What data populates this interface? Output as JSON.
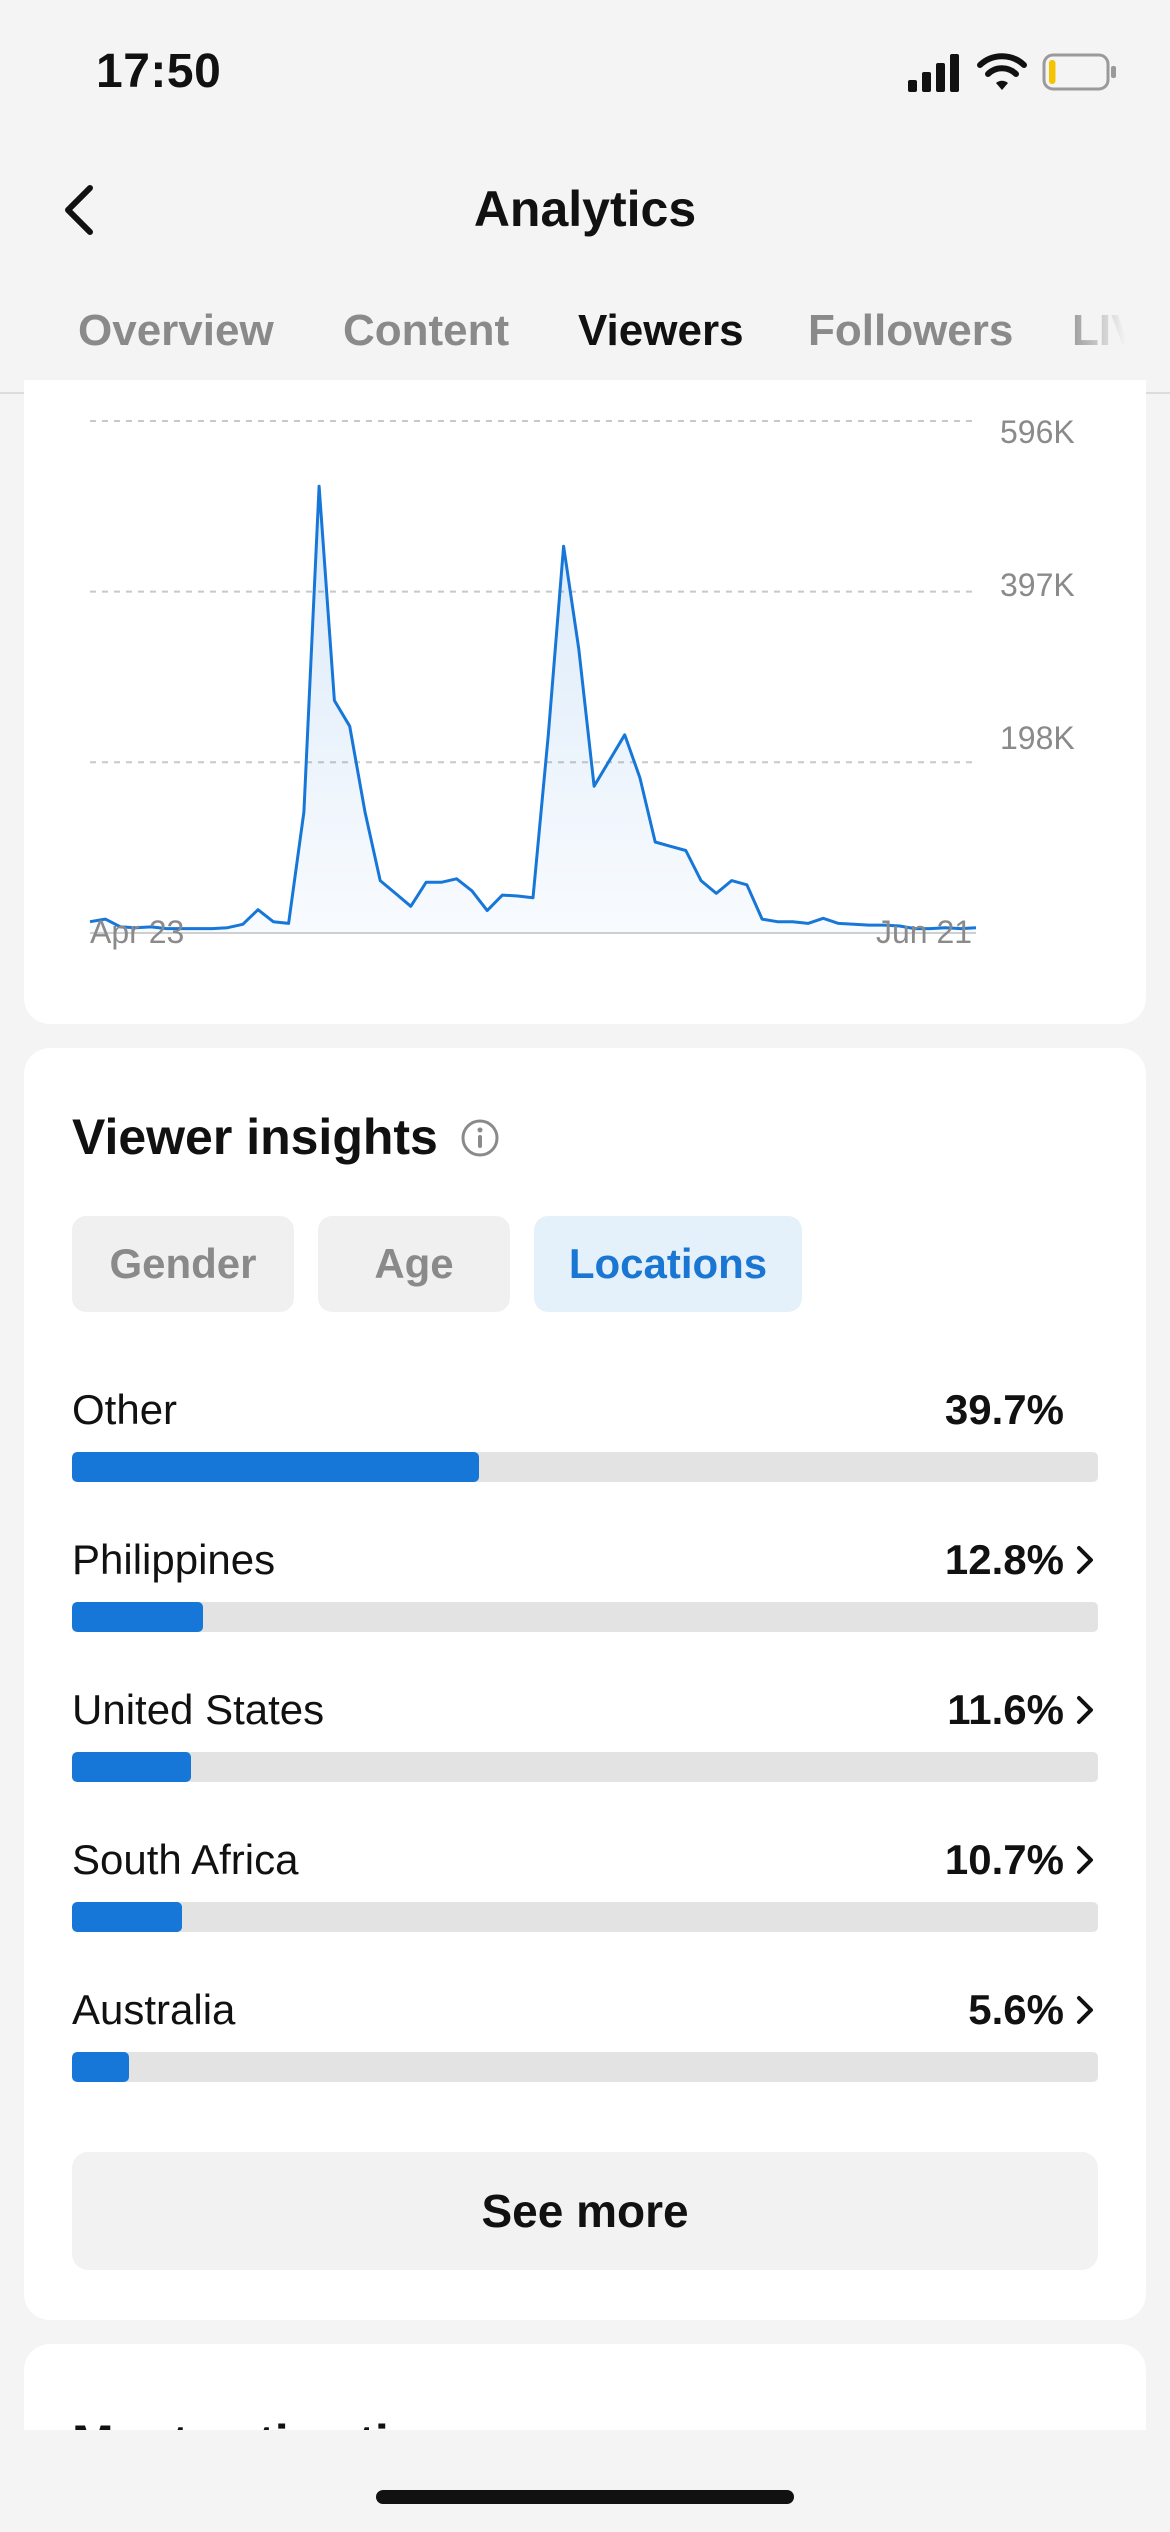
{
  "status": {
    "time": "17:50",
    "battery_level": 0.12
  },
  "nav": {
    "title": "Analytics"
  },
  "tabs": [
    {
      "label": "Overview",
      "active": false
    },
    {
      "label": "Content",
      "active": false
    },
    {
      "label": "Viewers",
      "active": true
    },
    {
      "label": "Followers",
      "active": false
    },
    {
      "label": "LIVE",
      "active": false
    }
  ],
  "chart_data": {
    "type": "area",
    "y_ticks": [
      "596K",
      "397K",
      "198K"
    ],
    "x_tick_labels": [
      "Apr 23",
      "Jun 21"
    ],
    "ylim": [
      0,
      596000
    ],
    "grid": true,
    "color": "#1677d9",
    "values": [
      12000,
      15000,
      6000,
      5000,
      6000,
      4000,
      4000,
      4000,
      4000,
      5000,
      9000,
      26000,
      12000,
      10000,
      140000,
      520000,
      270000,
      240000,
      140000,
      60000,
      45000,
      30000,
      58000,
      58000,
      62000,
      48000,
      25000,
      43000,
      42000,
      40000,
      230000,
      450000,
      330000,
      170000,
      200000,
      230000,
      180000,
      105000,
      100000,
      95000,
      60000,
      45000,
      60000,
      55000,
      15000,
      12000,
      12000,
      10000,
      16000,
      10000,
      9000,
      8000,
      8000,
      7000,
      4000,
      4000,
      5000,
      4000,
      5000
    ]
  },
  "insights": {
    "title": "Viewer insights",
    "pills": [
      {
        "label": "Gender",
        "active": false
      },
      {
        "label": "Age",
        "active": false
      },
      {
        "label": "Locations",
        "active": true
      }
    ],
    "locations": [
      {
        "name": "Other",
        "value": "39.7%",
        "pct": 39.7,
        "chevron": false
      },
      {
        "name": "Philippines",
        "value": "12.8%",
        "pct": 12.8,
        "chevron": true
      },
      {
        "name": "United States",
        "value": "11.6%",
        "pct": 11.6,
        "chevron": true
      },
      {
        "name": "South Africa",
        "value": "10.7%",
        "pct": 10.7,
        "chevron": true
      },
      {
        "name": "Australia",
        "value": "5.6%",
        "pct": 5.6,
        "chevron": true
      }
    ],
    "see_more": "See more"
  },
  "next_section": {
    "title": "Most active times"
  },
  "icons": {
    "back": "chevron-left-icon",
    "signal": "cellular-signal-icon",
    "wifi": "wifi-icon",
    "battery": "battery-low-icon",
    "info": "info-circle-icon",
    "row": "chevron-right-icon"
  }
}
